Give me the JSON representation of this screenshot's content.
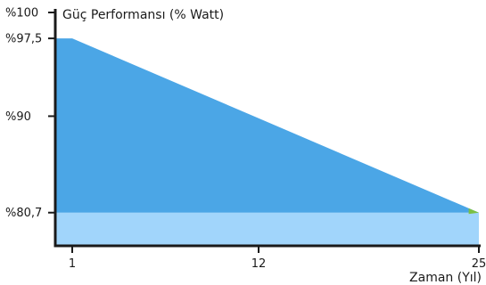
{
  "chart_data": {
    "type": "area",
    "title": "Güç Performansı (% Watt)",
    "xlabel": "Zaman (Yıl)",
    "ylabel": "",
    "xlim": [
      0,
      25
    ],
    "ylim": [
      77.5,
      100
    ],
    "x_ticks": [
      {
        "value": 1,
        "label": "1"
      },
      {
        "value": 12,
        "label": "12"
      },
      {
        "value": 25,
        "label": "25"
      }
    ],
    "y_ticks": [
      {
        "value": 100,
        "label": "%100"
      },
      {
        "value": 97.5,
        "label": "%97,5"
      },
      {
        "value": 90,
        "label": "%90"
      },
      {
        "value": 80.7,
        "label": "%80,7"
      }
    ],
    "series": [
      {
        "values_xy": [
          [
            0,
            97.5
          ],
          [
            1,
            97.5
          ],
          [
            25,
            80.7
          ]
        ],
        "color": "#4ba6e6"
      }
    ],
    "baseline_band": {
      "y": 80.7,
      "color": "#a1d5fb"
    },
    "end_marker_color": "#7bc043",
    "axis_color": "#1a1a1a",
    "grid": false
  }
}
